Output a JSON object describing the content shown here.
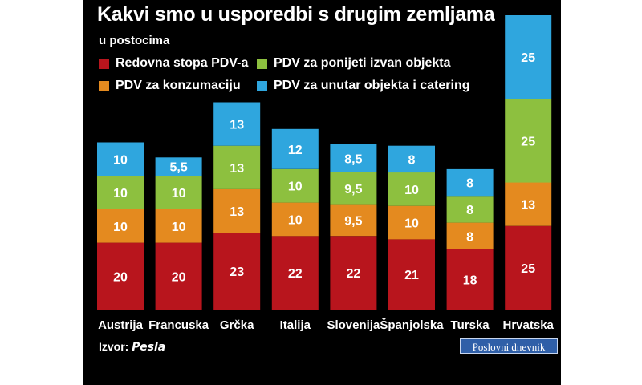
{
  "title": "Kakvi smo u usporedbi s drugim zemljama",
  "subtitle": "u postocima",
  "source": {
    "label": "Izvor:",
    "name": "Pesla"
  },
  "brand": "Poslovni dnevnik",
  "colors": {
    "background": "#000000",
    "redovna": "#b8151d",
    "konzumacija": "#e48a1f",
    "ponijeti": "#8dc03f",
    "unutar": "#2fa6de"
  },
  "legend": [
    {
      "label": "Redovna stopa PDV-a",
      "color": "#b8151d"
    },
    {
      "label": "PDV za ponijeti izvan objekta",
      "color": "#8dc03f"
    },
    {
      "label": "PDV za konzumaciju",
      "color": "#e48a1f"
    },
    {
      "label": "PDV za unutar objekta i catering",
      "color": "#2fa6de"
    }
  ],
  "chart_data": {
    "type": "bar",
    "stacked": true,
    "title": "Kakvi smo u usporedbi s drugim zemljama",
    "subtitle": "u postocima",
    "categories": [
      "Austrija",
      "Francuska",
      "Grčka",
      "Italija",
      "Slovenija",
      "Španjolska",
      "Turska",
      "Hrvatska"
    ],
    "series": [
      {
        "name": "Redovna stopa PDV-a",
        "color": "#b8151d",
        "values": [
          20,
          20,
          23,
          22,
          22,
          21,
          18,
          25
        ],
        "labels": [
          "20",
          "20",
          "23",
          "22",
          "22",
          "21",
          "18",
          "25"
        ]
      },
      {
        "name": "PDV za konzumaciju",
        "color": "#e48a1f",
        "values": [
          10,
          10,
          13,
          10,
          9.5,
          10,
          8,
          13
        ],
        "labels": [
          "10",
          "10",
          "13",
          "10",
          "9,5",
          "10",
          "8",
          "13"
        ]
      },
      {
        "name": "PDV za ponijeti izvan objekta",
        "color": "#8dc03f",
        "values": [
          10,
          10,
          13,
          10,
          9.5,
          10,
          8,
          25
        ],
        "labels": [
          "10",
          "10",
          "13",
          "10",
          "9,5",
          "10",
          "8",
          "25"
        ]
      },
      {
        "name": "PDV za unutar objekta i catering",
        "color": "#2fa6de",
        "values": [
          10,
          5.5,
          13,
          12,
          8.5,
          8,
          8,
          25
        ],
        "labels": [
          "10",
          "5,5",
          "13",
          "12",
          "8,5",
          "8",
          "8",
          "25"
        ]
      }
    ],
    "legend_position": "top-left",
    "grid": false,
    "ylim": [
      0,
      90
    ]
  }
}
